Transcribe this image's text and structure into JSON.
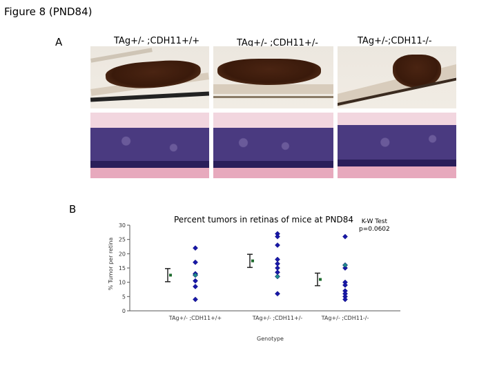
{
  "figure_title": "Figure 8 (PND84)",
  "panel_a_label": "A",
  "panel_b_label": "B",
  "column_titles": [
    "TAg+/- ;CDH11+/+",
    "TAg+/- ;CDH11+/-",
    "TAg+/-;CDH11-/-"
  ],
  "kw_test": {
    "line1": "K-W Test",
    "line2": "p=0.0602"
  },
  "colors": {
    "point": "#1818a8",
    "highlight_point": "#1f8a8a",
    "mean_marker": "#1e6b2e",
    "axis": "#555555"
  },
  "chart_data": {
    "type": "scatter",
    "title": "Percent tumors in retinas of mice at PND84",
    "xlabel": "Genotype",
    "ylabel": "% Tumor per retina",
    "ylim": [
      0,
      30
    ],
    "yticks": [
      0,
      5,
      10,
      15,
      20,
      25,
      30
    ],
    "categories": [
      "TAg+/- ;CDH11+/+",
      "TAg+/- ;CDH11+/-",
      "TAg+/- ;CDH11-/-"
    ],
    "grid": false,
    "series": [
      {
        "points": [
          {
            "x": "TAg+/- ;CDH11+/+",
            "y": [
              22,
              17,
              13,
              12.5,
              12.5,
              10.5,
              8.5,
              4
            ]
          },
          {
            "x": "TAg+/- ;CDH11+/-",
            "y": [
              27,
              26,
              23,
              18,
              16.5,
              15,
              13.5,
              12,
              6
            ]
          },
          {
            "x": "TAg+/- ;CDH11-/-",
            "y": [
              26,
              16,
              15,
              10,
              9,
              7,
              6,
              5,
              4
            ]
          }
        ]
      }
    ],
    "highlight": [
      {
        "x": "TAg+/- ;CDH11+/+",
        "y": 12.5
      },
      {
        "x": "TAg+/- ;CDH11+/-",
        "y": 12
      },
      {
        "x": "TAg+/- ;CDH11-/-",
        "y": 16
      }
    ],
    "mean_sem": [
      {
        "x": "TAg+/- ;CDH11+/+",
        "mean": 12.5,
        "sem": 2.3
      },
      {
        "x": "TAg+/- ;CDH11+/-",
        "mean": 17.5,
        "sem": 2.3
      },
      {
        "x": "TAg+/- ;CDH11-/-",
        "mean": 11,
        "sem": 2.2
      }
    ]
  }
}
